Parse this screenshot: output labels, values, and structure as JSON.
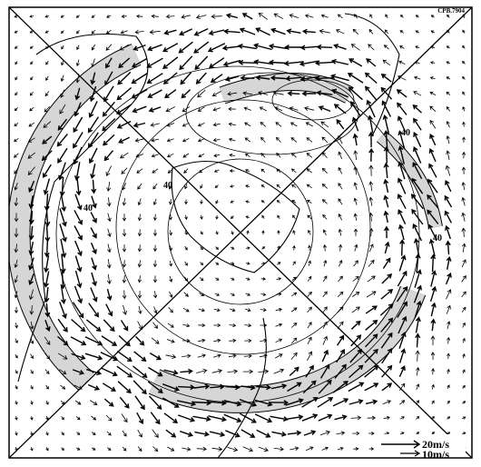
{
  "map": {
    "corner_label": "CPB.7904",
    "contour_labels": [
      "40",
      "40",
      "40",
      "40"
    ],
    "legend": {
      "labels": [
        "20m/s",
        "10m/s"
      ]
    }
  }
}
